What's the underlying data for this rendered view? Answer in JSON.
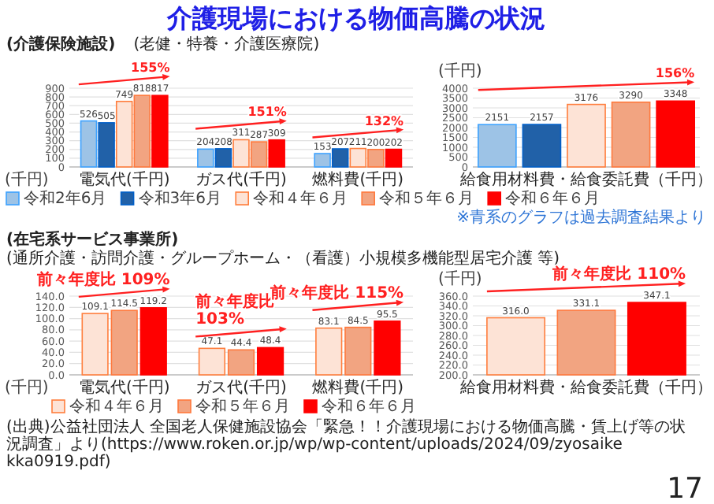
{
  "chart_data": [
    {
      "type": "bar",
      "title": "介護現場における物価高騰の状況",
      "subtitle": "(介護保険施設)",
      "ylabel": "(千円)",
      "categories": [
        "電気代(千円)",
        "ガス代(千円)",
        "燃料費(千円)"
      ],
      "series": [
        {
          "name": "令和2年6月",
          "color": "#9dc3e6",
          "values": [
            526,
            204,
            153
          ]
        },
        {
          "name": "令和3年6月",
          "color": "#2161a8",
          "values": [
            505,
            208,
            207
          ]
        },
        {
          "name": "令和４年６月",
          "color": "#fde3d6",
          "values": [
            749,
            311,
            211
          ]
        },
        {
          "name": "令和５年６月",
          "color": "#f2a481",
          "values": [
            818,
            287,
            200
          ]
        },
        {
          "name": "令和６年６月",
          "color": "#ff0000",
          "values": [
            817,
            309,
            202
          ]
        }
      ],
      "ylim": [
        0,
        900
      ],
      "yticks": [
        0,
        100,
        200,
        300,
        400,
        500,
        600,
        700,
        800,
        900
      ],
      "grid": "y",
      "data_labels": true,
      "legend": "bottom",
      "annotations": [
        "(老健・特養・介護医療院)",
        "155%",
        "151%",
        "132%"
      ]
    },
    {
      "type": "bar",
      "ylabel": "(千円)",
      "xlabel": "給食用材料費・給食委託費（千円）",
      "categories": [
        null,
        null,
        null,
        null,
        null
      ],
      "values": [
        2151,
        2157,
        3176,
        3290,
        3348
      ],
      "colors": [
        "#9dc3e6",
        "#2161a8",
        "#fde3d6",
        "#f2a481",
        "#ff0000"
      ],
      "ylim": [
        0,
        4000
      ],
      "yticks": [
        0,
        500,
        1000,
        1500,
        2000,
        2500,
        3000,
        3500,
        4000
      ],
      "grid": "y",
      "data_labels": true,
      "annotations": [
        "※青系のグラフは過去調査結果より",
        "156%"
      ]
    },
    {
      "type": "bar",
      "subtitle": "(在宅系サービス事業所)",
      "ylabel": "(千円)",
      "categories": [
        "電気代(千円)",
        "ガス代(千円)",
        "燃料費(千円)"
      ],
      "series": [
        {
          "name": "令和４年６月",
          "color": "#fde3d6",
          "values": [
            109.1,
            47.1,
            83.1
          ],
          "value_labels": [
            "109.1",
            "47.1",
            "83.1"
          ]
        },
        {
          "name": "令和５年６月",
          "color": "#f2a481",
          "values": [
            114.5,
            44.4,
            84.5
          ],
          "value_labels": [
            "114.5",
            "44.4",
            "84.5"
          ]
        },
        {
          "name": "令和６年６月",
          "color": "#ff0000",
          "values": [
            119.2,
            48.4,
            95.5
          ],
          "value_labels": [
            "119.2",
            "48.4",
            "95.5"
          ]
        }
      ],
      "ylim": [
        0,
        140
      ],
      "yticks": [
        {
          "value": 0,
          "label": "0.0"
        },
        {
          "value": 20,
          "label": "20.0"
        },
        {
          "value": 40,
          "label": "40.0"
        },
        {
          "value": 60,
          "label": "60.0"
        },
        {
          "value": 80,
          "label": "80.0"
        },
        {
          "value": 100,
          "label": "100.0"
        },
        {
          "value": 120,
          "label": "120.0"
        },
        {
          "value": 140,
          "label": "140.0"
        }
      ],
      "grid": "y",
      "legend": "bottom",
      "annotations": [
        "(通所介護・訪問介護・グループホーム・（看護）小規模多機能型居宅介護 等)",
        "前々年度比 109%",
        "前々年度比 103%",
        "前々年度比 115%"
      ]
    },
    {
      "type": "bar",
      "ylabel": "(千円)",
      "xlabel": "給食用材料費・給食委託費（千円）",
      "categories": [
        null,
        null,
        null
      ],
      "values": [
        316.0,
        331.1,
        347.1
      ],
      "colors": [
        "#fde3d6",
        "#f2a481",
        "#ff0000"
      ],
      "value_labels": [
        "316.0",
        "331.1",
        "347.1"
      ],
      "ylim": [
        200,
        360
      ],
      "yticks": [
        {
          "value": 200,
          "label": "200.0"
        },
        {
          "value": 220,
          "label": "220.0"
        },
        {
          "value": 240,
          "label": "240.0"
        },
        {
          "value": 260,
          "label": "260.0"
        },
        {
          "value": 280,
          "label": "280.0"
        },
        {
          "value": 300,
          "label": "300.0"
        },
        {
          "value": 320,
          "label": "320.0"
        },
        {
          "value": 340,
          "label": "340.0"
        },
        {
          "value": 360,
          "label": "360.0"
        }
      ],
      "grid": "y",
      "annotations": [
        "(出典)公益社団法人 全国老人保健施設協会「緊急！！介護現場における物価高騰・賃上げ等の状況調査」より(https://www.roken.or.jp/wp/wp-content/uploads/2024/09/zyosaikekka0919.pdf)",
        "17",
        "前々年度比 110%"
      ]
    }
  ]
}
